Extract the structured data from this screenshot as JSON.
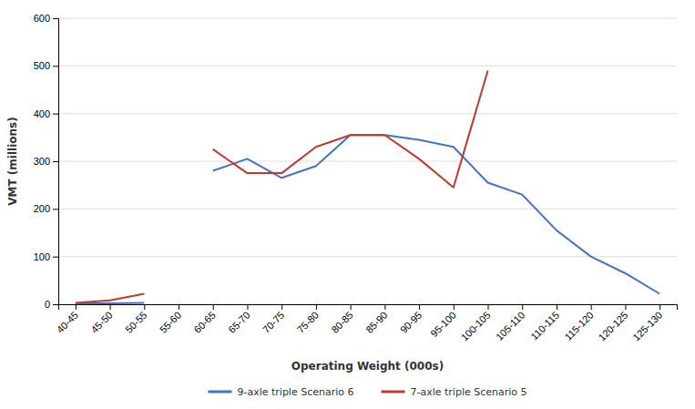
{
  "chart_data": {
    "type": "line",
    "categories": [
      "40-45",
      "45-50",
      "50-55",
      "55-60",
      "60-65",
      "65-70",
      "70-75",
      "75-80",
      "80-85",
      "85-90",
      "90-95",
      "95-100",
      "100-105",
      "105-110",
      "110-115",
      "115-120",
      "120-125",
      "125-130"
    ],
    "series": [
      {
        "name": "9-axle triple Scenario 6",
        "color": "#4472C4",
        "values": [
          2,
          2,
          3,
          null,
          280,
          305,
          265,
          290,
          355,
          355,
          345,
          330,
          255,
          230,
          155,
          100,
          65,
          22
        ]
      },
      {
        "name": "7-axle triple Scenario 5",
        "color": "#C0392B",
        "values": [
          3,
          8,
          22,
          null,
          325,
          275,
          275,
          330,
          355,
          355,
          305,
          245,
          490,
          null,
          null,
          null,
          null,
          null
        ]
      }
    ],
    "xlabel": "Operating Weight (000s)",
    "ylabel": "VMT (millions)",
    "ylim": [
      0,
      600
    ],
    "yticks": [
      0,
      100,
      200,
      300,
      400,
      500,
      600
    ],
    "grid": true,
    "legend": "bottom"
  }
}
